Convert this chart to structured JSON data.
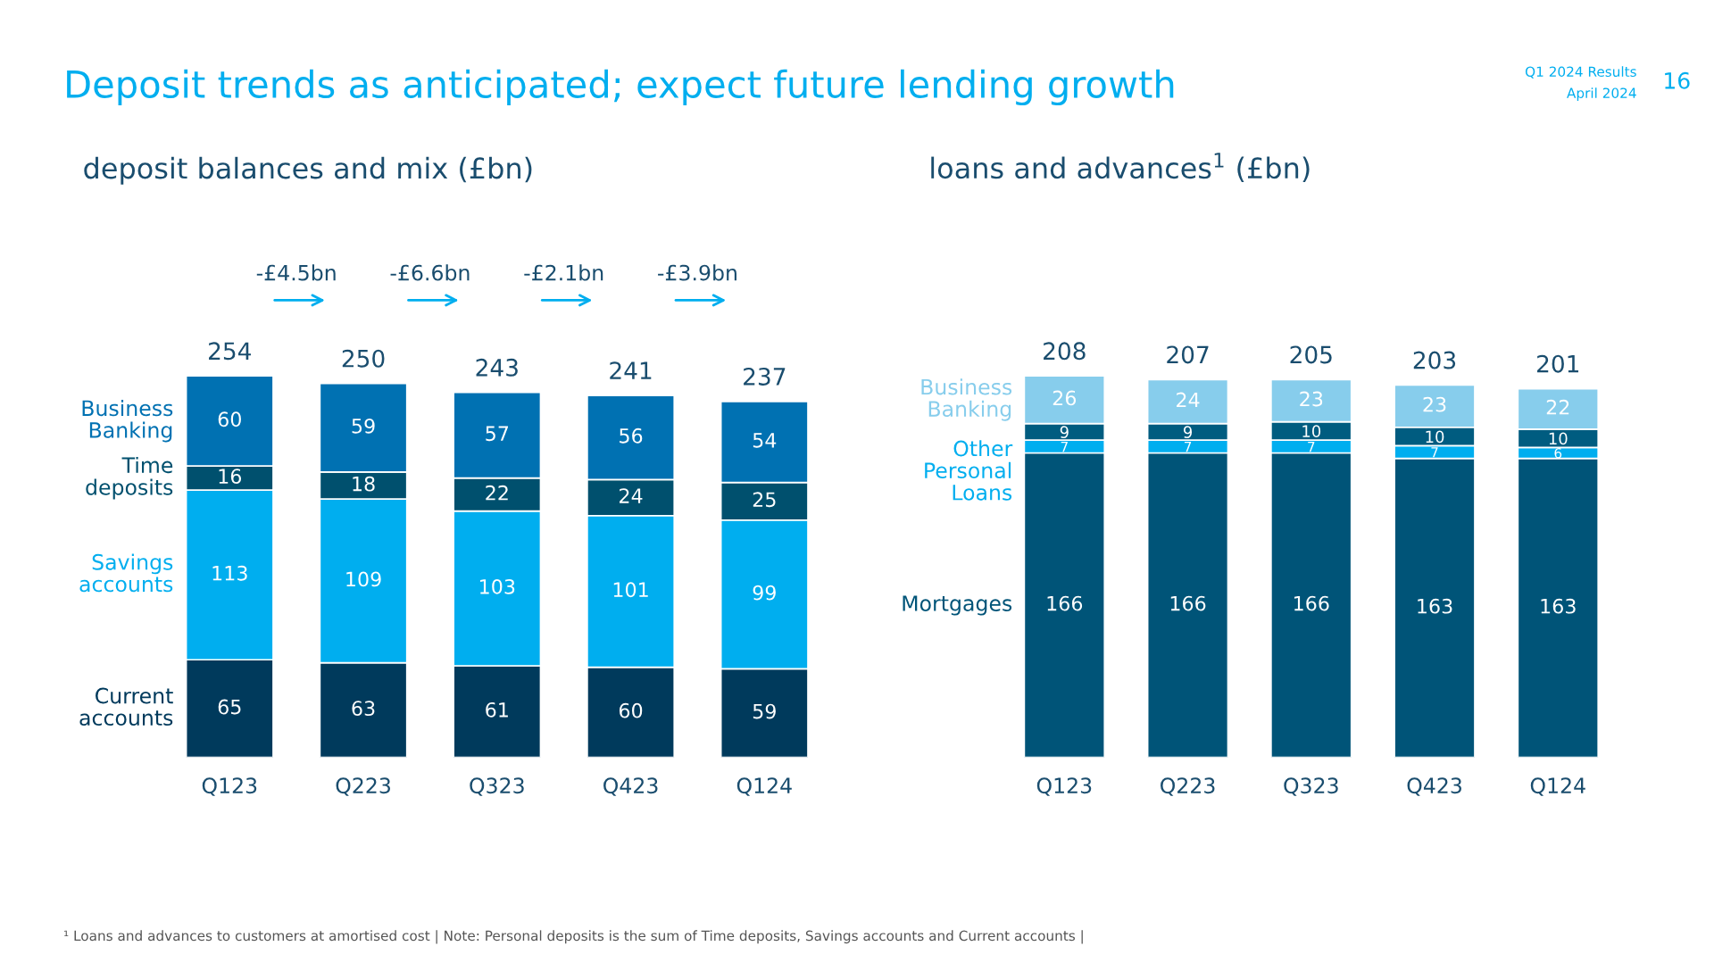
{
  "chart_data": [
    {
      "type": "other",
      "title": "Deposit trends as anticipated; expect future lending growth",
      "annotations": [
        "Q1 2024 Results",
        "April 2024",
        "16",
        "¹ Loans and advances to customers at amortised cost | Note: Personal deposits is the sum of Time deposits, Savings accounts and Current accounts |"
      ]
    },
    {
      "type": "bar",
      "stacked": true,
      "title": "deposit balances and mix (£bn)",
      "categories": [
        "Q123",
        "Q223",
        "Q323",
        "Q423",
        "Q124"
      ],
      "data_labels": true,
      "series": [
        {
          "name": "Current accounts",
          "color": "#003a5c",
          "values": [
            65,
            63,
            61,
            60,
            59
          ]
        },
        {
          "name": "Savings accounts",
          "color": "#00aeef",
          "values": [
            113,
            109,
            103,
            101,
            99
          ]
        },
        {
          "name": "Time deposits",
          "color": "#00506e",
          "values": [
            16,
            18,
            22,
            24,
            25
          ]
        },
        {
          "name": "Business Banking",
          "color": "#0071b2",
          "values": [
            60,
            59,
            57,
            56,
            54
          ]
        }
      ],
      "totals": [
        "254",
        "250",
        "243",
        "241",
        "237"
      ],
      "annotations": [
        "-£4.5bn",
        "-£6.6bn",
        "-£2.1bn",
        "-£3.9bn"
      ]
    },
    {
      "type": "bar",
      "stacked": true,
      "title": "loans and advances$^{1}$ (£bn)",
      "categories": [
        "Q123",
        "Q223",
        "Q323",
        "Q423",
        "Q124"
      ],
      "data_labels": true,
      "series": [
        {
          "name": "Mortgages",
          "color": "#005478",
          "values": [
            166,
            166,
            166,
            163,
            163
          ]
        },
        {
          "name": "Other Personal Loans",
          "color": "#00aeef",
          "values": [
            7,
            7,
            7,
            7,
            6
          ]
        },
        {
          "color": "#005c80",
          "values": [
            9,
            9,
            10,
            10,
            10
          ]
        },
        {
          "name": "Business Banking",
          "color": "#87cdec",
          "values": [
            26,
            24,
            23,
            23,
            22
          ]
        }
      ],
      "totals": [
        "208",
        "207",
        "205",
        "203",
        "201"
      ]
    }
  ]
}
